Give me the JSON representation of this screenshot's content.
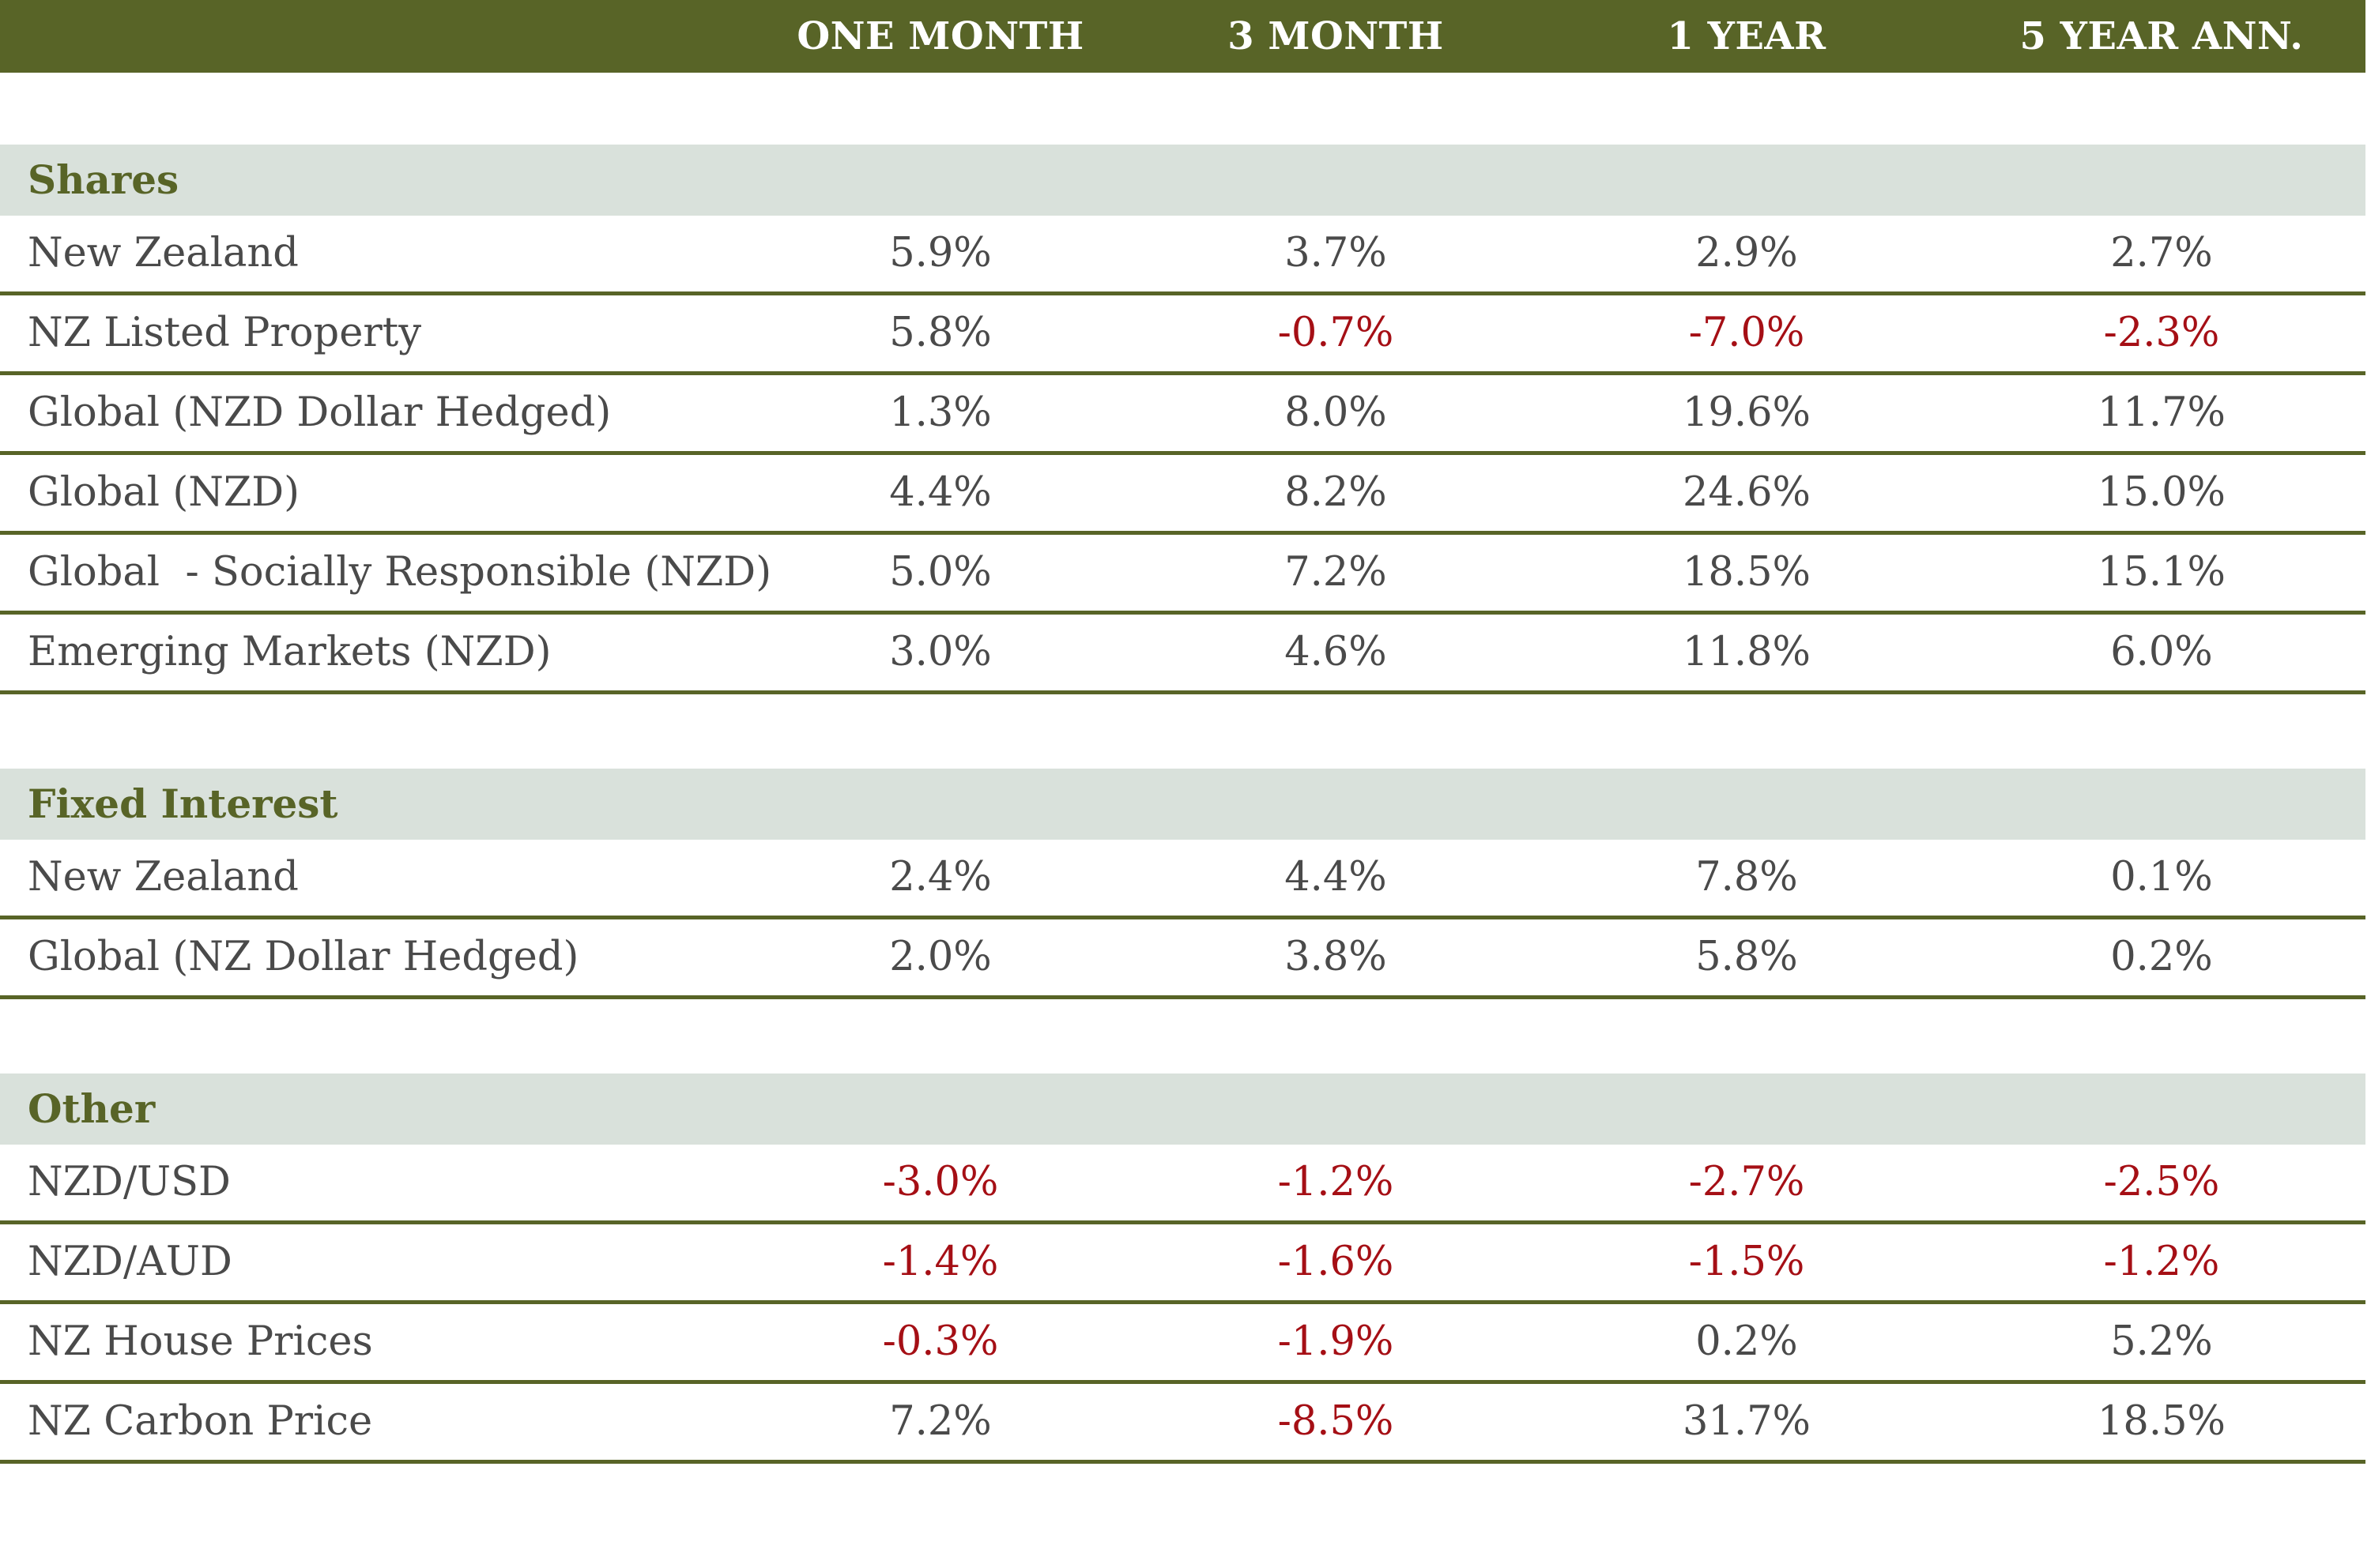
{
  "header": {
    "columns": [
      "ONE MONTH",
      "3 MONTH",
      "1 YEAR",
      "5 YEAR ANN."
    ]
  },
  "colors": {
    "header_bg": "#586427",
    "section_bg": "#d9e1db",
    "section_text": "#586427",
    "negative": "#a50f15",
    "text": "#4a4a4a"
  },
  "sections": [
    {
      "title": "Shares",
      "rows": [
        {
          "label": "New Zealand",
          "values": [
            "5.9%",
            "3.7%",
            "2.9%",
            "2.7%"
          ]
        },
        {
          "label": "NZ Listed Property",
          "values": [
            "5.8%",
            "-0.7%",
            "-7.0%",
            "-2.3%"
          ]
        },
        {
          "label": "Global (NZD Dollar Hedged)",
          "values": [
            "1.3%",
            "8.0%",
            "19.6%",
            "11.7%"
          ]
        },
        {
          "label": "Global (NZD)",
          "values": [
            "4.4%",
            "8.2%",
            "24.6%",
            "15.0%"
          ]
        },
        {
          "label": "Global  - Socially Responsible (NZD)",
          "values": [
            "5.0%",
            "7.2%",
            "18.5%",
            "15.1%"
          ]
        },
        {
          "label": "Emerging Markets (NZD)",
          "values": [
            "3.0%",
            "4.6%",
            "11.8%",
            "6.0%"
          ]
        }
      ]
    },
    {
      "title": "Fixed Interest",
      "rows": [
        {
          "label": "New Zealand",
          "values": [
            "2.4%",
            "4.4%",
            "7.8%",
            "0.1%"
          ]
        },
        {
          "label": "Global (NZ Dollar Hedged)",
          "values": [
            "2.0%",
            "3.8%",
            "5.8%",
            "0.2%"
          ]
        }
      ]
    },
    {
      "title": "Other",
      "rows": [
        {
          "label": "NZD/USD",
          "values": [
            "-3.0%",
            "-1.2%",
            "-2.7%",
            "-2.5%"
          ]
        },
        {
          "label": "NZD/AUD",
          "values": [
            "-1.4%",
            "-1.6%",
            "-1.5%",
            "-1.2%"
          ]
        },
        {
          "label": "NZ House Prices",
          "values": [
            "-0.3%",
            "-1.9%",
            "0.2%",
            "5.2%"
          ]
        },
        {
          "label": "NZ Carbon Price",
          "values": [
            "7.2%",
            "-8.5%",
            "31.7%",
            "18.5%"
          ]
        }
      ]
    }
  ]
}
